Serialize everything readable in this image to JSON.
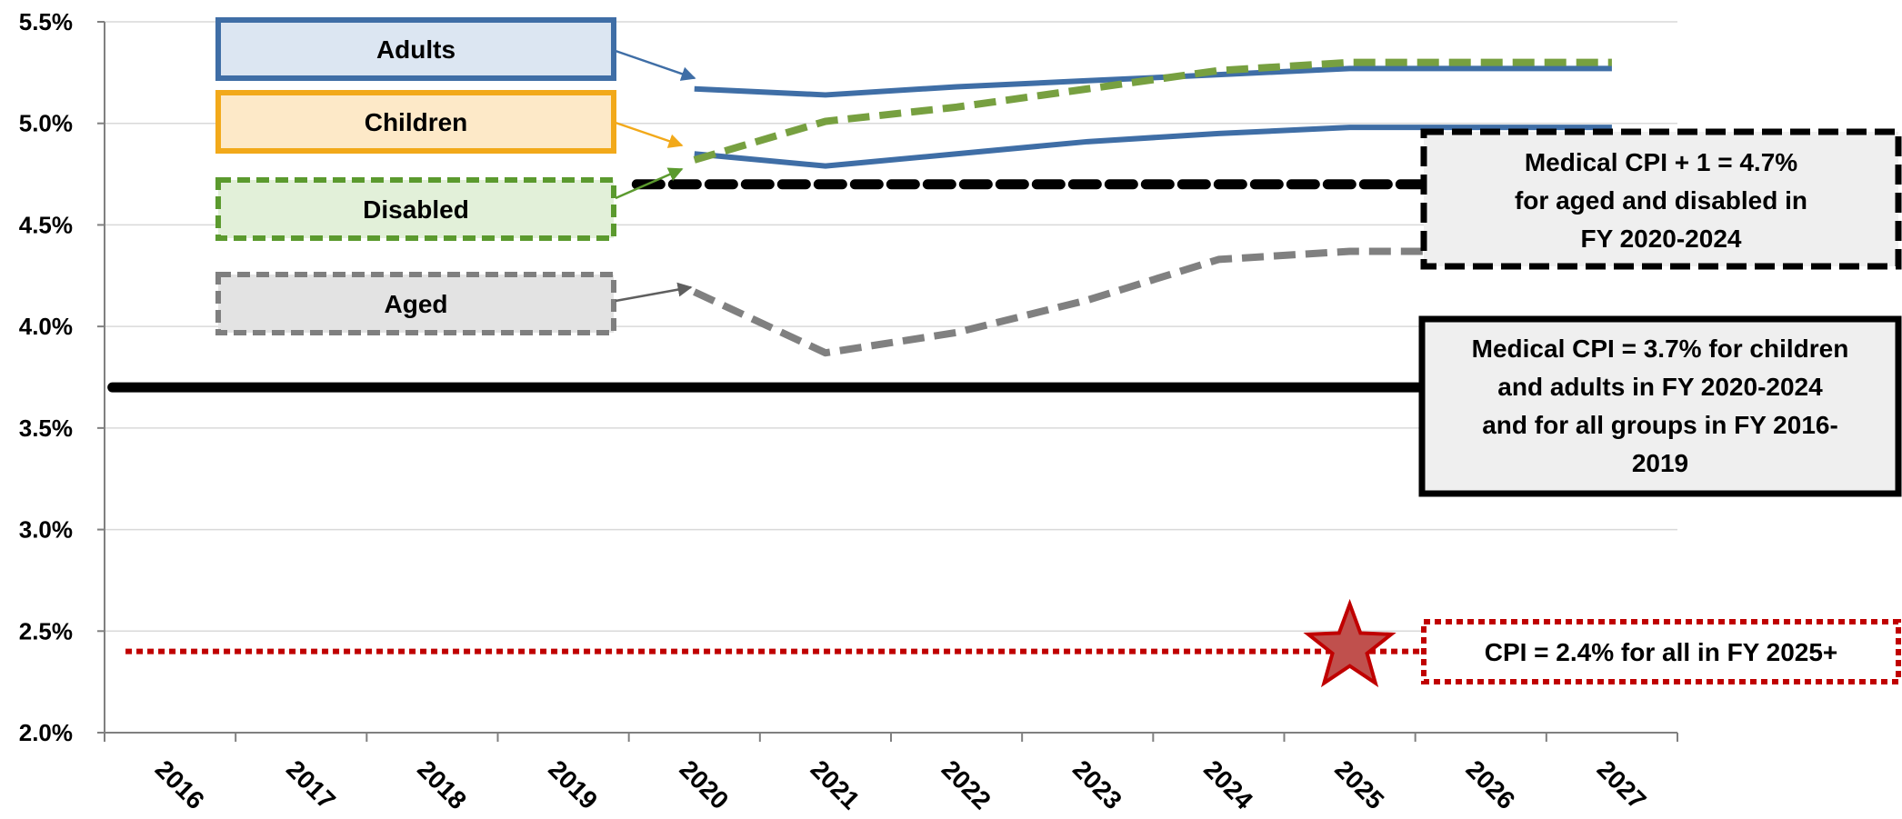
{
  "chart_data": {
    "type": "line",
    "title": "",
    "xlabel": "",
    "ylabel": "",
    "x": [
      2016,
      2017,
      2018,
      2019,
      2020,
      2021,
      2022,
      2023,
      2024,
      2025,
      2026,
      2027
    ],
    "x_tick_labels": [
      "2016",
      "2017",
      "2018",
      "2019",
      "2020",
      "2021",
      "2022",
      "2023",
      "2024",
      "2025",
      "2026",
      "2027"
    ],
    "ylim": [
      2.0,
      5.5
    ],
    "y_ticks": [
      2.0,
      2.5,
      3.0,
      3.5,
      4.0,
      4.5,
      5.0,
      5.5
    ],
    "y_tick_labels": [
      "2.0%",
      "2.5%",
      "3.0%",
      "3.5%",
      "4.0%",
      "4.5%",
      "5.0%",
      "5.5%"
    ],
    "grid": "horizontal",
    "series": [
      {
        "name": "Adults",
        "x": [
          2020,
          2021,
          2022,
          2023,
          2024,
          2025,
          2026,
          2027
        ],
        "values": [
          5.17,
          5.14,
          5.18,
          5.21,
          5.24,
          5.27,
          5.27,
          5.27
        ],
        "color": "#3f6ea6",
        "style": "solid"
      },
      {
        "name": "Children",
        "x": [
          2020,
          2021,
          2022,
          2023,
          2024,
          2025,
          2026,
          2027
        ],
        "values": [
          4.85,
          4.79,
          4.85,
          4.91,
          4.95,
          4.98,
          4.98,
          4.98
        ],
        "color": "#3f6ea6",
        "style": "solid"
      },
      {
        "name": "Disabled",
        "x": [
          2020,
          2021,
          2022,
          2023,
          2024,
          2025,
          2026,
          2027
        ],
        "values": [
          4.82,
          5.01,
          5.08,
          5.17,
          5.26,
          5.3,
          5.3,
          5.3
        ],
        "color": "#77a040",
        "style": "dashed"
      },
      {
        "name": "Aged",
        "x": [
          2020,
          2021,
          2022,
          2023,
          2024,
          2025,
          2026
        ],
        "values": [
          4.17,
          3.87,
          3.97,
          4.13,
          4.33,
          4.37,
          4.37
        ],
        "color": "#808080",
        "style": "dashed"
      }
    ],
    "reference_lines": [
      {
        "label": "Medical CPI = 3.7% for children and adults in FY 2020-2024 and for all groups in FY 2016-2019",
        "value": 3.7,
        "x_from": 2016,
        "x_to": 2025,
        "color": "#000000",
        "style": "solid"
      },
      {
        "label": "Medical CPI + 1 = 4.7% for aged and disabled in FY 2020-2024",
        "value": 4.7,
        "x_from": 2020,
        "x_to": 2025,
        "color": "#000000",
        "style": "dashed"
      },
      {
        "label": "CPI = 2.4% for all in FY 2025+",
        "value": 2.4,
        "x_from": 2016,
        "x_to": 2026,
        "color": "#c00000",
        "style": "dotted"
      }
    ],
    "marker": {
      "shape": "star",
      "x": 2025,
      "value": 2.4,
      "color": "#c0504d"
    },
    "legend_boxes": [
      {
        "label": "Adults",
        "border": "#3f6ea6",
        "fill": "#dce6f2",
        "dashed": false
      },
      {
        "label": "Children",
        "border": "#f2a91a",
        "fill": "#fde9c8",
        "dashed": false
      },
      {
        "label": "Disabled",
        "border": "#5b9a2e",
        "fill": "#e2f0d9",
        "dashed": true
      },
      {
        "label": "Aged",
        "border": "#7f7f7f",
        "fill": "#e3e3e3",
        "dashed": true
      }
    ],
    "annotations": [
      {
        "lines": [
          "Medical CPI + 1 = 4.7%",
          "for aged and disabled in",
          "FY 2020-2024"
        ]
      },
      {
        "lines": [
          "Medical CPI = 3.7% for children",
          "and adults in FY 2020-2024",
          "and for all groups in FY 2016-",
          "2019"
        ]
      },
      {
        "lines": [
          "CPI = 2.4% for all in FY 2025+"
        ]
      }
    ]
  }
}
